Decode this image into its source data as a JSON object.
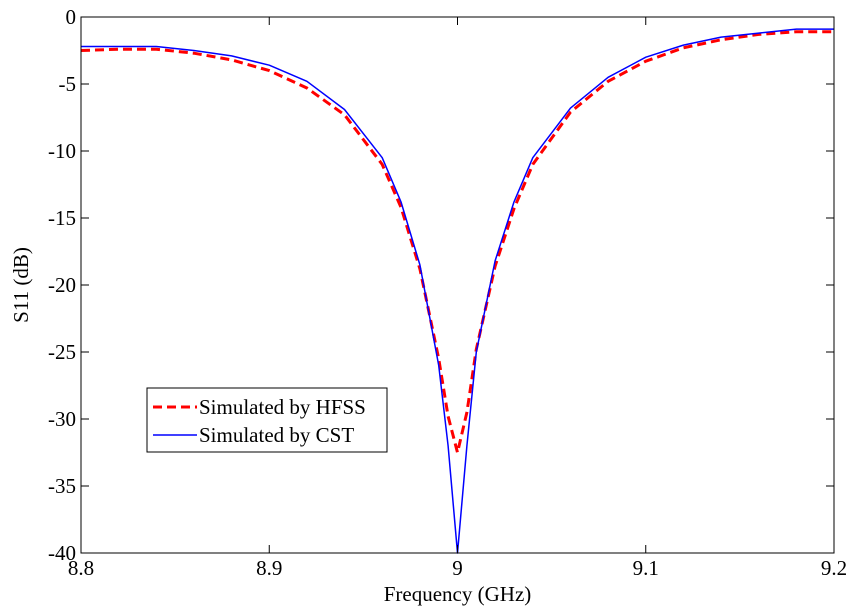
{
  "chart_data": {
    "type": "line",
    "title": "",
    "xlabel": "Frequency (GHz)",
    "ylabel": "S11 (dB)",
    "xlim": [
      8.8,
      9.2
    ],
    "ylim": [
      -40,
      0
    ],
    "xticks": [
      8.8,
      8.9,
      9.0,
      9.1,
      9.2
    ],
    "xtick_labels": [
      "8.8",
      "8.9",
      "9",
      "9.1",
      "9.2"
    ],
    "yticks": [
      0,
      -5,
      -10,
      -15,
      -20,
      -25,
      -30,
      -35,
      -40
    ],
    "ytick_labels": [
      "0",
      "-5",
      "-10",
      "-15",
      "-20",
      "-25",
      "-30",
      "-35",
      "-40"
    ],
    "grid": false,
    "legend_position": "lower-left",
    "series": [
      {
        "name": "Simulated by HFSS",
        "color": "#ff0000",
        "style": "dashed",
        "x": [
          8.8,
          8.82,
          8.84,
          8.86,
          8.88,
          8.9,
          8.92,
          8.94,
          8.96,
          8.97,
          8.98,
          8.99,
          8.995,
          9.0,
          9.005,
          9.01,
          9.02,
          9.03,
          9.04,
          9.06,
          9.08,
          9.1,
          9.12,
          9.14,
          9.16,
          9.18,
          9.2
        ],
        "y": [
          -2.5,
          -2.4,
          -2.4,
          -2.7,
          -3.2,
          -4.0,
          -5.3,
          -7.3,
          -11.0,
          -14.2,
          -18.8,
          -25.5,
          -29.8,
          -32.5,
          -29.5,
          -24.8,
          -18.6,
          -14.3,
          -11.0,
          -7.1,
          -4.8,
          -3.3,
          -2.3,
          -1.7,
          -1.3,
          -1.1,
          -1.1
        ]
      },
      {
        "name": "Simulated by CST",
        "color": "#0000ff",
        "style": "solid",
        "x": [
          8.8,
          8.82,
          8.84,
          8.86,
          8.88,
          8.9,
          8.92,
          8.94,
          8.96,
          8.97,
          8.98,
          8.99,
          8.995,
          9.0,
          9.005,
          9.01,
          9.02,
          9.03,
          9.04,
          9.06,
          9.08,
          9.1,
          9.12,
          9.14,
          9.16,
          9.18,
          9.2
        ],
        "y": [
          -2.2,
          -2.2,
          -2.2,
          -2.5,
          -2.9,
          -3.6,
          -4.8,
          -6.9,
          -10.5,
          -13.8,
          -18.5,
          -26.0,
          -32.0,
          -40.0,
          -32.0,
          -25.0,
          -18.2,
          -13.8,
          -10.5,
          -6.8,
          -4.5,
          -3.0,
          -2.1,
          -1.5,
          -1.2,
          -0.9,
          -0.9
        ]
      }
    ]
  }
}
